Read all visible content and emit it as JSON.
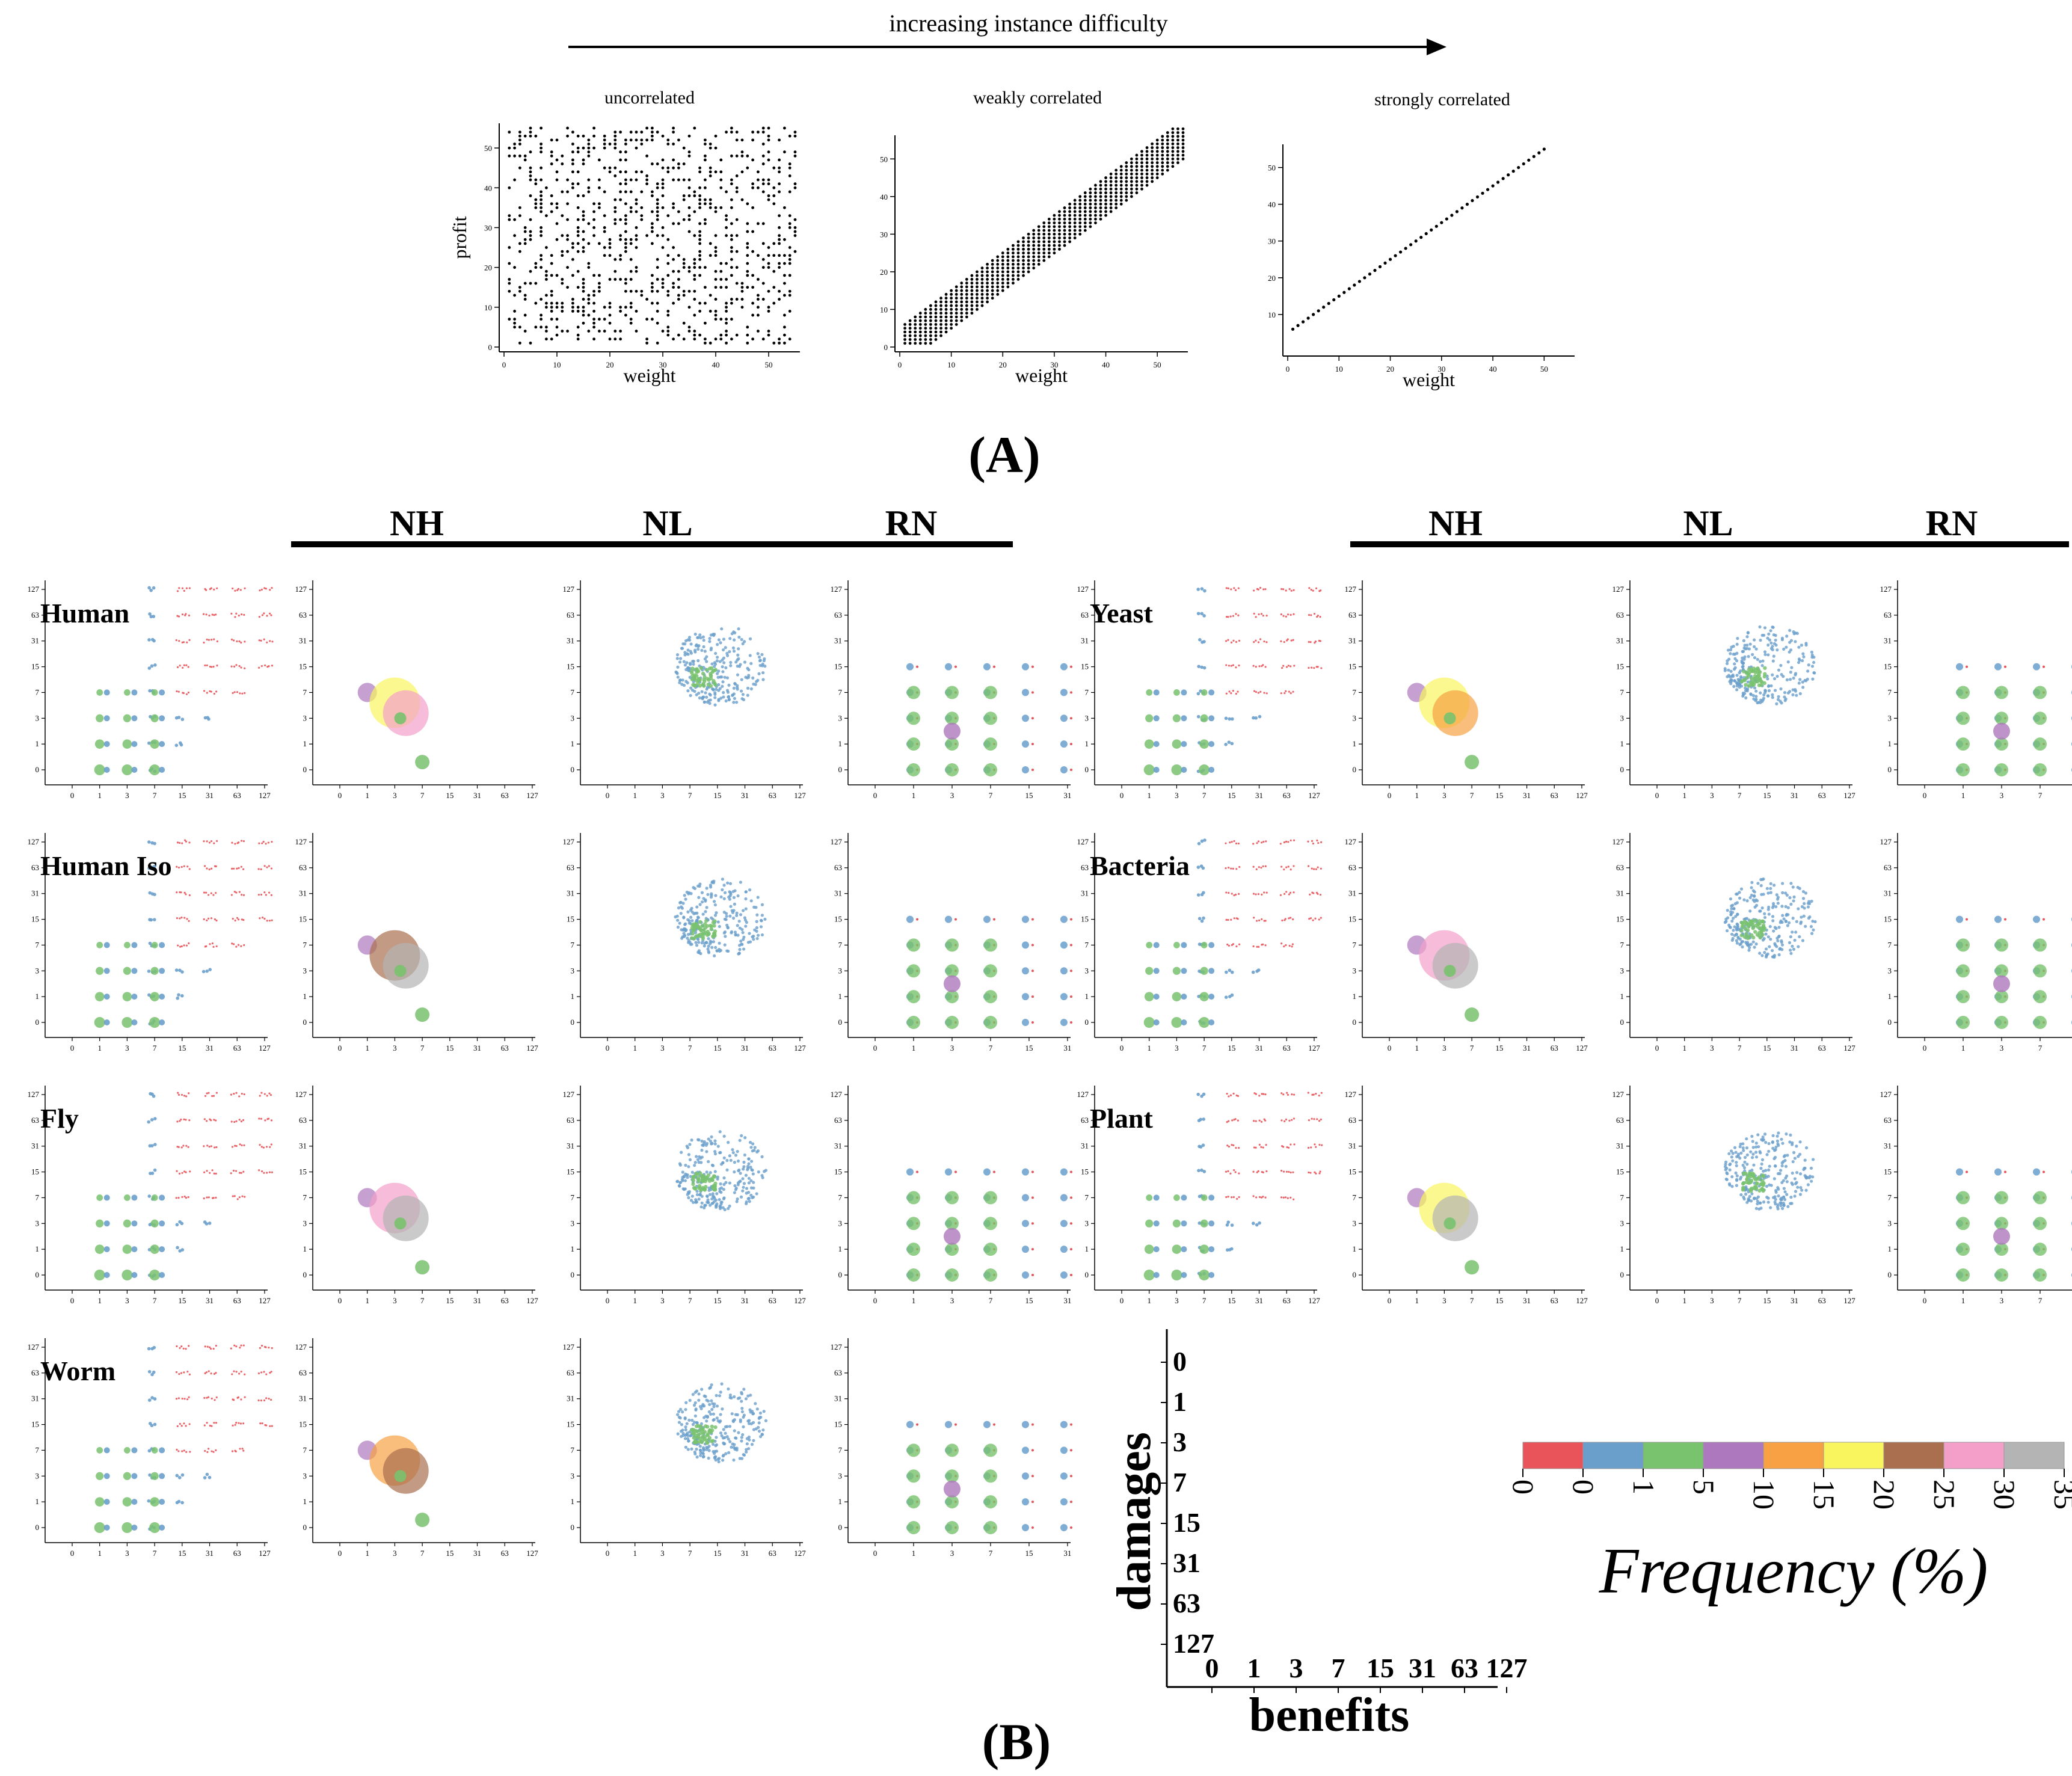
{
  "figure": {
    "panel_a_label": "(A)",
    "panel_b_label": "(B)",
    "difficulty_label": "increasing instance difficulty"
  },
  "chart_data": [
    {
      "type": "scatter",
      "panel": "A",
      "title": "uncorrelated",
      "xlabel": "weight",
      "ylabel": "profit",
      "xticks": [
        0,
        10,
        20,
        30,
        40,
        50
      ],
      "yticks": [
        0,
        10,
        20,
        30,
        40,
        50
      ],
      "xlim": [
        0,
        55
      ],
      "ylim": [
        0,
        55
      ],
      "description_of_points": "weights 1-55, profits 1-55 independent"
    },
    {
      "type": "scatter",
      "panel": "A",
      "title": "weakly correlated",
      "xlabel": "weight",
      "ylabel": "",
      "xticks": [
        0,
        10,
        20,
        30,
        40,
        50
      ],
      "yticks": [
        0,
        10,
        20,
        30,
        40,
        50
      ],
      "xlim": [
        0,
        55
      ],
      "ylim": [
        0,
        55
      ]
    },
    {
      "type": "scatter",
      "panel": "A",
      "title": "strongly correlated",
      "xlabel": "weight",
      "ylabel": "",
      "xticks": [
        0,
        10,
        20,
        30,
        40,
        50
      ],
      "yticks": [
        10,
        20,
        30,
        40,
        50
      ],
      "xlim": [
        0,
        55
      ],
      "ylim": [
        0,
        55
      ]
    },
    {
      "type": "scatter",
      "panel": "B",
      "column_groups": [
        {
          "methods": [
            "NH",
            "NL",
            "RN"
          ]
        },
        {
          "methods": [
            "NH",
            "NL",
            "RN"
          ]
        }
      ],
      "species_left": [
        "Human",
        "Human Iso",
        "Fly",
        "Worm"
      ],
      "species_right": [
        "Yeast",
        "Bacteria",
        "Plant"
      ],
      "tick_values": [
        0,
        1,
        3,
        7,
        15,
        31,
        63,
        127
      ],
      "rn_x_tick_values": [
        0,
        1,
        3,
        7,
        15,
        31
      ],
      "xlabel": "benefits",
      "ylabel": "damages",
      "legend": {
        "title": "Frequency  (%)",
        "bins": [
          "0",
          "0",
          "1",
          "5",
          "10",
          "15",
          "20",
          "25",
          "30",
          "35"
        ],
        "colors": [
          "#e8545a",
          "#6a9fcb",
          "#79c26e",
          "#ad78bd",
          "#f7a144",
          "#f8f55e",
          "#a96f4f",
          "#f49fca",
          "#b4b4b4"
        ]
      }
    }
  ]
}
